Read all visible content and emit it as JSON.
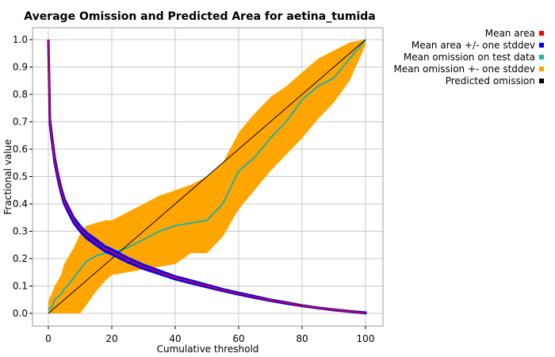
{
  "chart_data": {
    "type": "line",
    "title": "Average Omission and Predicted Area for aetina_tumida",
    "xlabel": "Cumulative threshold",
    "ylabel": "Fractional value",
    "xlim": [
      0,
      100
    ],
    "ylim": [
      0,
      1.0
    ],
    "xticks": [
      0,
      20,
      40,
      60,
      80,
      100
    ],
    "yticks": [
      0.0,
      0.1,
      0.2,
      0.3,
      0.4,
      0.5,
      0.6,
      0.7,
      0.8,
      0.9,
      1.0
    ],
    "xtick_labels": [
      "0",
      "20",
      "40",
      "60",
      "80",
      "100"
    ],
    "ytick_labels": [
      "0.0",
      "0.1",
      "0.2",
      "0.3",
      "0.4",
      "0.5",
      "0.6",
      "0.7",
      "0.8",
      "0.9",
      "1.0"
    ],
    "grid": true,
    "legend_position": "top-right",
    "x": [
      0,
      0.5,
      1,
      2,
      3,
      4,
      5,
      6,
      8,
      10,
      12,
      15,
      18,
      20,
      25,
      30,
      35,
      40,
      45,
      50,
      55,
      60,
      65,
      70,
      75,
      80,
      85,
      90,
      95,
      100
    ],
    "series": [
      {
        "name": "Mean area",
        "color": "#ff0000",
        "values": [
          1.0,
          0.7,
          0.65,
          0.56,
          0.5,
          0.45,
          0.41,
          0.385,
          0.34,
          0.31,
          0.285,
          0.26,
          0.235,
          0.225,
          0.195,
          0.17,
          0.15,
          0.13,
          0.115,
          0.1,
          0.085,
          0.072,
          0.06,
          0.048,
          0.038,
          0.028,
          0.02,
          0.013,
          0.007,
          0.002
        ]
      },
      {
        "name": "Mean area +/- one stddev",
        "color": "#0000ff",
        "lower": [
          0.99,
          0.69,
          0.64,
          0.55,
          0.49,
          0.44,
          0.4,
          0.375,
          0.33,
          0.3,
          0.275,
          0.25,
          0.226,
          0.216,
          0.187,
          0.163,
          0.144,
          0.125,
          0.11,
          0.096,
          0.082,
          0.069,
          0.057,
          0.046,
          0.036,
          0.027,
          0.019,
          0.012,
          0.006,
          0.001
        ],
        "upper": [
          1.0,
          0.71,
          0.66,
          0.57,
          0.51,
          0.46,
          0.42,
          0.395,
          0.35,
          0.32,
          0.295,
          0.27,
          0.244,
          0.234,
          0.203,
          0.177,
          0.156,
          0.135,
          0.12,
          0.104,
          0.088,
          0.075,
          0.063,
          0.05,
          0.04,
          0.029,
          0.021,
          0.014,
          0.008,
          0.003
        ]
      },
      {
        "name": "Mean omission on test data",
        "color": "#20b2aa",
        "values": [
          0.01,
          0.02,
          0.02,
          0.05,
          0.06,
          0.07,
          0.09,
          0.1,
          0.13,
          0.16,
          0.19,
          0.21,
          0.22,
          0.22,
          0.24,
          0.27,
          0.3,
          0.32,
          0.33,
          0.34,
          0.4,
          0.52,
          0.57,
          0.64,
          0.7,
          0.78,
          0.83,
          0.86,
          0.93,
          1.0
        ]
      },
      {
        "name": "Mean omission +- one stddev",
        "color": "#ffa500",
        "lower": [
          0.0,
          0.0,
          0.0,
          0.0,
          0.0,
          0.0,
          0.0,
          0.0,
          0.0,
          0.0,
          0.03,
          0.08,
          0.12,
          0.14,
          0.15,
          0.16,
          0.17,
          0.18,
          0.22,
          0.22,
          0.28,
          0.38,
          0.45,
          0.52,
          0.58,
          0.64,
          0.71,
          0.77,
          0.85,
          0.98
        ],
        "upper": [
          0.04,
          0.06,
          0.07,
          0.1,
          0.12,
          0.14,
          0.18,
          0.2,
          0.24,
          0.29,
          0.32,
          0.33,
          0.34,
          0.34,
          0.37,
          0.4,
          0.43,
          0.45,
          0.47,
          0.5,
          0.55,
          0.66,
          0.73,
          0.79,
          0.83,
          0.88,
          0.93,
          0.96,
          0.99,
          1.0
        ]
      },
      {
        "name": "Predicted omission",
        "color": "#000000",
        "values": [
          0.0,
          0.005,
          0.01,
          0.02,
          0.03,
          0.04,
          0.05,
          0.06,
          0.08,
          0.1,
          0.12,
          0.15,
          0.18,
          0.2,
          0.25,
          0.3,
          0.35,
          0.4,
          0.45,
          0.5,
          0.55,
          0.6,
          0.65,
          0.7,
          0.75,
          0.8,
          0.85,
          0.9,
          0.95,
          1.0
        ]
      }
    ]
  }
}
